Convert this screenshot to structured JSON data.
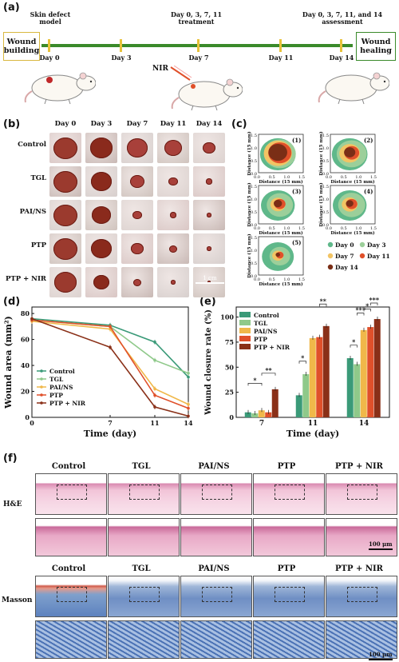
{
  "panels": {
    "a": "(a)",
    "b": "(b)",
    "c": "(c)",
    "d": "(d)",
    "e": "(e)",
    "f": "(f)"
  },
  "timeline": {
    "start_box": "Wound building",
    "end_box": "Wound healing",
    "top_labels": [
      "Skin defect model",
      "Day 0, 3, 7, 11 treatment",
      "Day 0, 3, 7, 11, and 14 assessment"
    ],
    "ticks": [
      "Day 0",
      "Day 3",
      "Day 7",
      "Day 11",
      "Day 14"
    ],
    "nir": "NIR",
    "line_color": "#3a8a2a",
    "tick_color": "#e8c23a"
  },
  "photos": {
    "days": [
      "Day 0",
      "Day 3",
      "Day 7",
      "Day 11",
      "Day 14"
    ],
    "groups": [
      "Control",
      "TGL",
      "PAI/NS",
      "PTP",
      "PTP + NIR"
    ],
    "scale": "1 cm"
  },
  "contours": {
    "ylabel": "Distance (15 mm)",
    "xlabel": "Distance (15 mm)",
    "ticks": [
      "0.0",
      "0.5",
      "1.0",
      "1.5"
    ],
    "panels": [
      "(1)",
      "(2)",
      "(3)",
      "(4)",
      "(5)"
    ],
    "legend": [
      {
        "name": "Day 0",
        "color": "#5fb88a"
      },
      {
        "name": "Day 3",
        "color": "#9ccf9a"
      },
      {
        "name": "Day 7",
        "color": "#f2c464"
      },
      {
        "name": "Day 11",
        "color": "#e0502a"
      },
      {
        "name": "Day 14",
        "color": "#7a2e16"
      }
    ]
  },
  "colors": {
    "control": "#3a9a78",
    "tgl": "#8fc98a",
    "pai": "#f0b84a",
    "ptp": "#e0502a",
    "ptpnir": "#8a3018"
  },
  "chart_data": [
    {
      "type": "line",
      "ylabel": "Wound area (mm²)",
      "xlabel": "Time (day)",
      "x": [
        0,
        7,
        11,
        14
      ],
      "xlim": [
        0,
        14
      ],
      "ylim": [
        0,
        85
      ],
      "yticks": [
        0,
        20,
        40,
        60,
        80
      ],
      "legend_position": "bottom-left",
      "series": [
        {
          "name": "Control",
          "values": [
            76,
            71,
            58,
            31
          ],
          "color": "#3a9a78"
        },
        {
          "name": "TGL",
          "values": [
            75,
            70,
            44,
            34
          ],
          "color": "#8fc98a"
        },
        {
          "name": "PAI/NS",
          "values": [
            74,
            68,
            22,
            10
          ],
          "color": "#f0b84a"
        },
        {
          "name": "PTP",
          "values": [
            75,
            70,
            17,
            7
          ],
          "color": "#e0502a"
        },
        {
          "name": "PTP + NIR",
          "values": [
            76,
            54,
            8,
            1
          ],
          "color": "#8a3018"
        }
      ]
    },
    {
      "type": "bar",
      "ylabel": "Wound closure rate (%)",
      "xlabel": "Time (day)",
      "categories": [
        "7",
        "11",
        "14"
      ],
      "ylim": [
        0,
        110
      ],
      "yticks": [
        0,
        25,
        50,
        75,
        100
      ],
      "legend_position": "top-left",
      "series": [
        {
          "name": "Control",
          "values": [
            5,
            22,
            59
          ],
          "color": "#3a9a78"
        },
        {
          "name": "TGL",
          "values": [
            4,
            43,
            53
          ],
          "color": "#8fc98a"
        },
        {
          "name": "PAI/NS",
          "values": [
            7,
            79,
            87
          ],
          "color": "#f0b84a"
        },
        {
          "name": "PTP",
          "values": [
            5,
            80,
            90
          ],
          "color": "#e0502a"
        },
        {
          "name": "PTP + NIR",
          "values": [
            28,
            91,
            98
          ],
          "color": "#8a3018"
        }
      ],
      "annotations": [
        "*",
        "**",
        "*",
        "**",
        "*",
        "***",
        "*",
        "***"
      ]
    }
  ],
  "histology": {
    "groups": [
      "Control",
      "TGL",
      "PAI/NS",
      "PTP",
      "PTP + NIR"
    ],
    "he_label": "H&E",
    "masson_label": "Masson",
    "scale": "100 μm"
  }
}
